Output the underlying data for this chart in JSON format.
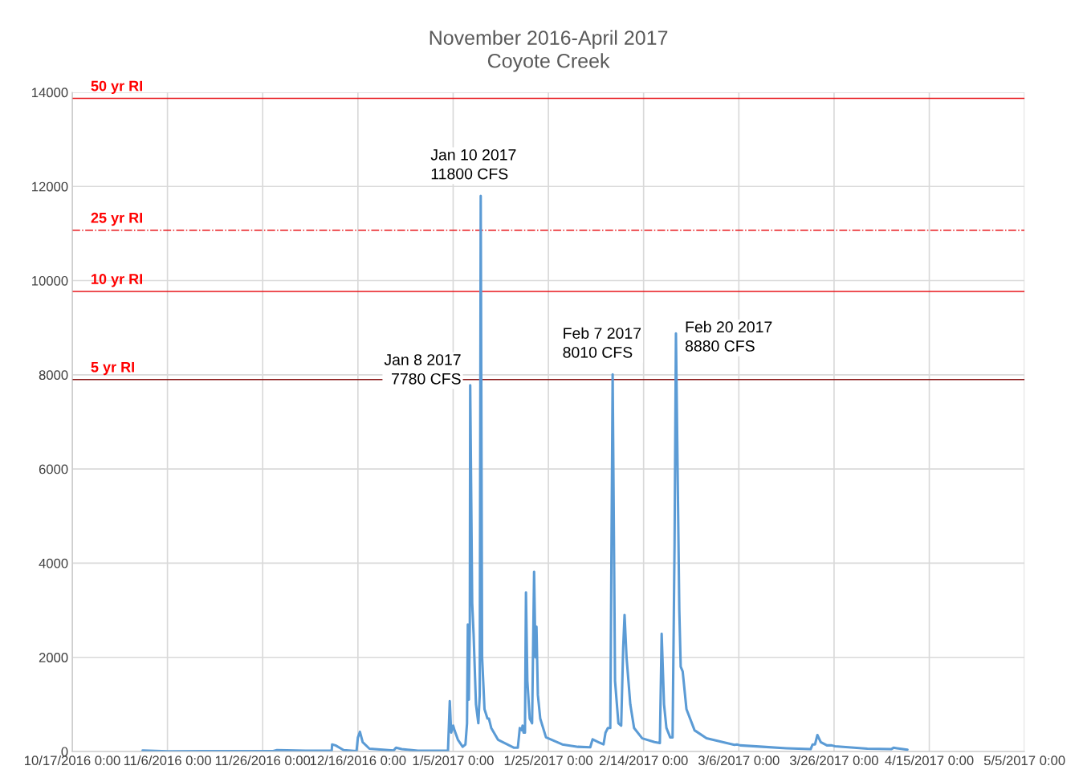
{
  "chart_data": {
    "type": "line",
    "title": "November 2016-April 2017\nCoyote Creek",
    "xlim": [
      "2016-10-17",
      "2017-05-05"
    ],
    "xticks": [
      {
        "value": "2016-10-17",
        "label": "10/17/2016 0:00"
      },
      {
        "value": "2016-11-06",
        "label": "11/6/2016 0:00"
      },
      {
        "value": "2016-11-26",
        "label": "11/26/2016 0:00"
      },
      {
        "value": "2016-12-16",
        "label": "12/16/2016 0:00"
      },
      {
        "value": "2017-01-05",
        "label": "1/5/2017 0:00"
      },
      {
        "value": "2017-01-25",
        "label": "1/25/2017 0:00"
      },
      {
        "value": "2017-02-14",
        "label": "2/14/2017 0:00"
      },
      {
        "value": "2017-03-06",
        "label": "3/6/2017 0:00"
      },
      {
        "value": "2017-03-26",
        "label": "3/26/2017 0:00"
      },
      {
        "value": "2017-04-15",
        "label": "4/15/2017 0:00"
      },
      {
        "value": "2017-05-05",
        "label": "5/5/2017 0:00"
      }
    ],
    "ylim": [
      0,
      14000
    ],
    "yticks": [
      0,
      2000,
      4000,
      6000,
      8000,
      10000,
      12000,
      14000
    ],
    "grid": true,
    "marker": "none",
    "line_style": "solid",
    "series": [
      {
        "color": "#5b9bd5",
        "x": [
          "2016-10-31T19:00",
          "2016-11-06T05:00",
          "2016-11-28T05:00",
          "2016-11-29T00:00",
          "2016-12-05T00:00",
          "2016-12-10T12:00",
          "2016-12-10T14:00",
          "2016-12-11T07:00",
          "2016-12-13T00:00",
          "2016-12-15T17:00",
          "2016-12-16T00:00",
          "2016-12-16T10:00",
          "2016-12-17T00:00",
          "2016-12-18T10:00",
          "2016-12-23T12:00",
          "2016-12-24T00:00",
          "2016-12-25T05:00",
          "2016-12-28T14:00",
          "2017-01-03T22:00",
          "2017-01-04T07:00",
          "2017-01-04T14:00",
          "2017-01-05T00:00",
          "2017-01-05T07:00",
          "2017-01-06T00:00",
          "2017-01-07T00:00",
          "2017-01-07T14:00",
          "2017-01-07T22:00",
          "2017-01-08T02:00",
          "2017-01-08T07:00",
          "2017-01-08T12:00",
          "2017-01-08T14:00",
          "2017-01-09T00:00",
          "2017-01-09T07:00",
          "2017-01-09T19:00",
          "2017-01-10T07:00",
          "2017-01-10T14:00",
          "2017-01-10T19:00",
          "2017-01-11T02:00",
          "2017-01-11T14:00",
          "2017-01-12T05:00",
          "2017-01-12T12:00",
          "2017-01-13T00:00",
          "2017-01-14T10:00",
          "2017-01-17T19:00",
          "2017-01-18T14:00",
          "2017-01-19T00:00",
          "2017-01-19T10:00",
          "2017-01-19T14:00",
          "2017-01-19T19:00",
          "2017-01-20T02:00",
          "2017-01-20T07:00",
          "2017-01-20T14:00",
          "2017-01-21T02:00",
          "2017-01-21T14:00",
          "2017-01-22T00:00",
          "2017-01-22T07:00",
          "2017-01-22T12:00",
          "2017-01-22T19:00",
          "2017-01-23T07:00",
          "2017-01-24T12:00",
          "2017-01-27T22:00",
          "2017-01-31T05:00",
          "2017-02-02T19:00",
          "2017-02-03T07:00",
          "2017-02-04T12:00",
          "2017-02-05T14:00",
          "2017-02-06T00:00",
          "2017-02-06T12:00",
          "2017-02-07T00:00",
          "2017-02-07T12:00",
          "2017-02-08T00:00",
          "2017-02-08T17:00",
          "2017-02-09T07:00",
          "2017-02-09T17:00",
          "2017-02-10T00:00",
          "2017-02-10T10:00",
          "2017-02-11T05:00",
          "2017-02-12T00:00",
          "2017-02-13T17:00",
          "2017-02-16T07:00",
          "2017-02-17T10:00",
          "2017-02-17T19:00",
          "2017-02-18T07:00",
          "2017-02-18T19:00",
          "2017-02-19T14:00",
          "2017-02-20T02:00",
          "2017-02-20T12:00",
          "2017-02-20T19:00",
          "2017-02-21T12:00",
          "2017-02-21T19:00",
          "2017-02-22T05:00",
          "2017-02-23T00:00",
          "2017-02-24T17:00",
          "2017-02-27T05:00",
          "2017-03-02T14:00",
          "2017-03-05T02:00",
          "2017-03-05T14:00",
          "2017-03-06T07:00",
          "2017-03-11T00:00",
          "2017-03-16T00:00",
          "2017-03-21T02:00",
          "2017-03-21T12:00",
          "2017-03-22T00:00",
          "2017-03-22T12:00",
          "2017-03-23T05:00",
          "2017-03-24T12:00",
          "2017-03-25T12:00",
          "2017-03-26T05:00",
          "2017-04-02T00:00",
          "2017-04-07T00:00",
          "2017-04-07T12:00",
          "2017-04-08T05:00",
          "2017-04-10T10:00"
        ],
        "values": [
          20,
          5,
          10,
          30,
          15,
          20,
          150,
          130,
          30,
          10,
          300,
          420,
          200,
          60,
          20,
          80,
          50,
          15,
          15,
          1070,
          400,
          550,
          450,
          250,
          100,
          150,
          600,
          2700,
          1100,
          2700,
          7780,
          3150,
          2500,
          1000,
          600,
          1200,
          11800,
          2000,
          900,
          700,
          700,
          500,
          250,
          80,
          80,
          500,
          450,
          550,
          400,
          400,
          3380,
          1500,
          700,
          600,
          3820,
          2000,
          2650,
          1200,
          700,
          300,
          150,
          100,
          90,
          260,
          200,
          150,
          400,
          500,
          500,
          8010,
          1500,
          600,
          550,
          2200,
          2900,
          2000,
          1000,
          500,
          280,
          200,
          180,
          2500,
          1000,
          500,
          300,
          300,
          4400,
          8880,
          3000,
          1800,
          1700,
          900,
          450,
          280,
          200,
          140,
          150,
          130,
          100,
          70,
          50,
          150,
          150,
          350,
          200,
          130,
          130,
          110,
          60,
          50,
          80,
          70,
          40
        ]
      }
    ],
    "ref_lines": [
      {
        "axis": "y",
        "value": 13870,
        "label": "50 yr RI",
        "color": "#e8161b",
        "line_style": "solid"
      },
      {
        "axis": "y",
        "value": 11070,
        "label": "25 yr RI",
        "color": "#e8161b",
        "line_style": "dashdot"
      },
      {
        "axis": "y",
        "value": 9770,
        "label": "10 yr RI",
        "color": "#e8161b",
        "line_style": "solid"
      },
      {
        "axis": "y",
        "value": 7900,
        "label": "5 yr RI",
        "color": "#8b1a1a",
        "line_style": "solid"
      }
    ],
    "annotations": [
      {
        "text": "Jan 8 2017\n7780 CFS",
        "x": "2017-01-08T14:00",
        "y": 7780
      },
      {
        "text": "Jan 10 2017\n11800 CFS",
        "x": "2017-01-10T19:00",
        "y": 11800
      },
      {
        "text": "Feb 7 2017\n8010 CFS",
        "x": "2017-02-07T12:00",
        "y": 8010
      },
      {
        "text": "Feb 20 2017\n8880 CFS",
        "x": "2017-02-20T19:00",
        "y": 8880
      }
    ]
  }
}
